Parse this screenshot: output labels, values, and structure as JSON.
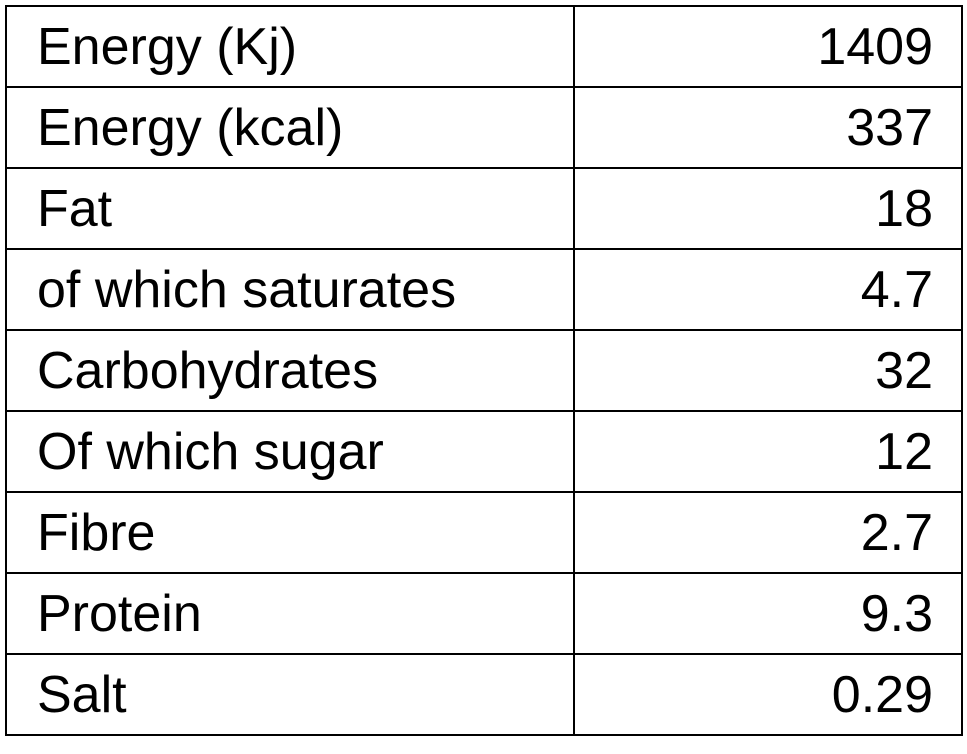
{
  "nutrition_table": {
    "rows": [
      {
        "label": "Energy (Kj)",
        "value": "1409"
      },
      {
        "label": "Energy (kcal)",
        "value": "337"
      },
      {
        "label": "Fat",
        "value": "18"
      },
      {
        "label": "of which saturates",
        "value": "4.7"
      },
      {
        "label": "Carbohydrates",
        "value": "32"
      },
      {
        "label": "Of which sugar",
        "value": "12"
      },
      {
        "label": "Fibre",
        "value": "2.7"
      },
      {
        "label": "Protein",
        "value": "9.3"
      },
      {
        "label": "Salt",
        "value": "0.29"
      }
    ]
  }
}
